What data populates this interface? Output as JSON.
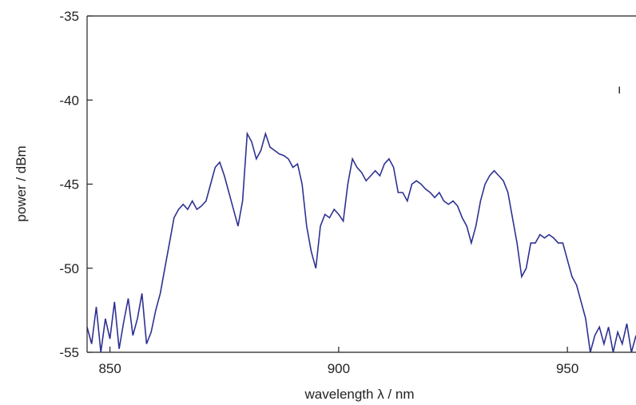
{
  "chart_data": {
    "type": "line",
    "title": "",
    "xlabel": "wavelength λ / nm",
    "ylabel": "power / dBm",
    "xlim": [
      845,
      965
    ],
    "ylim": [
      -55,
      -35
    ],
    "xticks": [
      850,
      900,
      950
    ],
    "xtick_labels": [
      "850",
      "900",
      "950"
    ],
    "yticks": [
      -35,
      -40,
      -45,
      -50,
      -55
    ],
    "ytick_labels": [
      "-35",
      "-40",
      "-45",
      "-50",
      "-55"
    ],
    "grid": false,
    "legend": "none",
    "annotation": "ı",
    "line_color": "#2e3192",
    "series": [
      {
        "x": [
          845,
          846,
          847,
          848,
          849,
          850,
          851,
          852,
          853,
          854,
          855,
          856,
          857,
          858,
          859,
          860,
          861,
          862,
          863,
          864,
          865,
          866,
          867,
          868,
          869,
          870,
          871,
          872,
          873,
          874,
          875,
          876,
          877,
          878,
          879,
          880,
          881,
          882,
          883,
          884,
          885,
          886,
          887,
          888,
          889,
          890,
          891,
          892,
          893,
          894,
          895,
          896,
          897,
          898,
          899,
          900,
          901,
          902,
          903,
          904,
          905,
          906,
          907,
          908,
          909,
          910,
          911,
          912,
          913,
          914,
          915,
          916,
          917,
          918,
          919,
          920,
          921,
          922,
          923,
          924,
          925,
          926,
          927,
          928,
          929,
          930,
          931,
          932,
          933,
          934,
          935,
          936,
          937,
          938,
          939,
          940,
          941,
          942,
          943,
          944,
          945,
          946,
          947,
          948,
          949,
          950,
          951,
          952,
          953,
          954,
          955,
          956,
          957,
          958,
          959,
          960,
          961,
          962,
          963,
          964,
          965
        ],
        "values": [
          -53.5,
          -54.5,
          -52.3,
          -55,
          -53,
          -54.2,
          -52,
          -54.8,
          -53.2,
          -51.8,
          -54,
          -53,
          -51.5,
          -54.5,
          -53.8,
          -52.5,
          -51.5,
          -50,
          -48.5,
          -47,
          -46.5,
          -46.2,
          -46.5,
          -46,
          -46.5,
          -46.3,
          -46,
          -45,
          -44,
          -43.7,
          -44.5,
          -45.5,
          -46.5,
          -47.5,
          -46,
          -42,
          -42.5,
          -43.5,
          -43,
          -42,
          -42.8,
          -43,
          -43.2,
          -43.3,
          -43.5,
          -44,
          -43.8,
          -45,
          -47.5,
          -49,
          -50,
          -47.5,
          -46.8,
          -47,
          -46.5,
          -46.8,
          -47.2,
          -45,
          -43.5,
          -44,
          -44.3,
          -44.8,
          -44.5,
          -44.2,
          -44.5,
          -43.8,
          -43.5,
          -44,
          -45.5,
          -45.5,
          -46,
          -45,
          -44.8,
          -45,
          -45.3,
          -45.5,
          -45.8,
          -45.5,
          -46,
          -46.2,
          -46,
          -46.3,
          -47,
          -47.5,
          -48.5,
          -47.5,
          -46,
          -45,
          -44.5,
          -44.2,
          -44.5,
          -44.8,
          -45.5,
          -47,
          -48.5,
          -50.5,
          -50,
          -48.5,
          -48.5,
          -48,
          -48.2,
          -48,
          -48.2,
          -48.5,
          -48.5,
          -49.5,
          -50.5,
          -51,
          -52,
          -53,
          -55,
          -54,
          -53.5,
          -54.5,
          -53.5,
          -55,
          -53.8,
          -54.5,
          -53.3,
          -55,
          -54
        ]
      }
    ]
  }
}
